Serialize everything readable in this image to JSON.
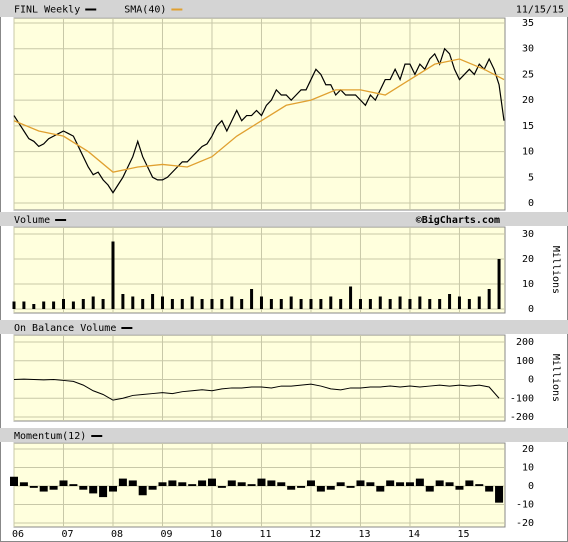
{
  "chart_data": [
    {
      "type": "line",
      "date": "11/15/15",
      "x": [
        2006.0,
        2006.1,
        2006.2,
        2006.3,
        2006.4,
        2006.5,
        2006.6,
        2006.7,
        2006.8,
        2006.9,
        2007.0,
        2007.1,
        2007.2,
        2007.3,
        2007.4,
        2007.5,
        2007.6,
        2007.7,
        2007.8,
        2007.9,
        2008.0,
        2008.1,
        2008.2,
        2008.3,
        2008.4,
        2008.5,
        2008.6,
        2008.7,
        2008.8,
        2008.9,
        2009.0,
        2009.1,
        2009.2,
        2009.3,
        2009.4,
        2009.5,
        2009.6,
        2009.7,
        2009.8,
        2009.9,
        2010.0,
        2010.1,
        2010.2,
        2010.3,
        2010.4,
        2010.5,
        2010.6,
        2010.7,
        2010.8,
        2010.9,
        2011.0,
        2011.1,
        2011.2,
        2011.3,
        2011.4,
        2011.5,
        2011.6,
        2011.7,
        2011.8,
        2011.9,
        2012.0,
        2012.1,
        2012.2,
        2012.3,
        2012.4,
        2012.5,
        2012.6,
        2012.7,
        2012.8,
        2012.9,
        2013.0,
        2013.1,
        2013.2,
        2013.3,
        2013.4,
        2013.5,
        2013.6,
        2013.7,
        2013.8,
        2013.9,
        2014.0,
        2014.1,
        2014.2,
        2014.3,
        2014.4,
        2014.5,
        2014.6,
        2014.7,
        2014.8,
        2014.9,
        2015.0,
        2015.1,
        2015.2,
        2015.3,
        2015.4,
        2015.5,
        2015.6,
        2015.7,
        2015.8,
        2015.9
      ],
      "series": [
        {
          "name": "FINL Weekly",
          "color": "#000000",
          "values": [
            17,
            15.5,
            14,
            12.5,
            12,
            11,
            11.5,
            12.5,
            13,
            13.5,
            14,
            13.5,
            13,
            11,
            9,
            7,
            5.5,
            6,
            4.5,
            3.5,
            2,
            3.5,
            5,
            7,
            9,
            12,
            9,
            7,
            5,
            4.5,
            4.5,
            5,
            6,
            7,
            8,
            8,
            9,
            10,
            11,
            11.5,
            13,
            15,
            16,
            14,
            16,
            18,
            16,
            17,
            17,
            18,
            17,
            19,
            20,
            22,
            21,
            21,
            20,
            21,
            22,
            22,
            24,
            26,
            25,
            23,
            23,
            21,
            22,
            21,
            21,
            21,
            20,
            19,
            21,
            20,
            22,
            24,
            24,
            26,
            24,
            27,
            27,
            25,
            27,
            26,
            28,
            29,
            27,
            30,
            29,
            26,
            24,
            25,
            26,
            25,
            27,
            26,
            28,
            26,
            23,
            16
          ]
        },
        {
          "name": "SMA(40)",
          "color": "#e0a030",
          "x": [
            2006.0,
            2006.5,
            2007.0,
            2007.5,
            2008.0,
            2008.5,
            2009.0,
            2009.5,
            2010.0,
            2010.5,
            2011.0,
            2011.5,
            2012.0,
            2012.5,
            2013.0,
            2013.5,
            2014.0,
            2014.5,
            2015.0,
            2015.5,
            2015.9
          ],
          "values": [
            16,
            14,
            13,
            10,
            6,
            7,
            7.5,
            7,
            9,
            13,
            16,
            19,
            20,
            22,
            22,
            21,
            24,
            27,
            28,
            26,
            24
          ]
        }
      ],
      "ylim": [
        0,
        35
      ],
      "yticks": [
        0,
        5,
        10,
        15,
        20,
        25,
        30,
        35
      ]
    },
    {
      "type": "bar",
      "title": "Volume",
      "source": "©BigCharts.com",
      "ylabel": "Millions",
      "color": "#000000",
      "x": [
        2006.0,
        2006.2,
        2006.4,
        2006.6,
        2006.8,
        2007.0,
        2007.2,
        2007.4,
        2007.6,
        2007.8,
        2008.0,
        2008.2,
        2008.4,
        2008.6,
        2008.8,
        2009.0,
        2009.2,
        2009.4,
        2009.6,
        2009.8,
        2010.0,
        2010.2,
        2010.4,
        2010.6,
        2010.8,
        2011.0,
        2011.2,
        2011.4,
        2011.6,
        2011.8,
        2012.0,
        2012.2,
        2012.4,
        2012.6,
        2012.8,
        2013.0,
        2013.2,
        2013.4,
        2013.6,
        2013.8,
        2014.0,
        2014.2,
        2014.4,
        2014.6,
        2014.8,
        2015.0,
        2015.2,
        2015.4,
        2015.6,
        2015.8
      ],
      "values": [
        3,
        3,
        2,
        3,
        3,
        4,
        3,
        4,
        5,
        4,
        27,
        6,
        5,
        4,
        6,
        5,
        4,
        4,
        5,
        4,
        4,
        4,
        5,
        4,
        8,
        5,
        4,
        4,
        5,
        4,
        4,
        4,
        5,
        4,
        9,
        4,
        4,
        5,
        4,
        5,
        4,
        5,
        4,
        4,
        6,
        5,
        4,
        5,
        8,
        20
      ],
      "ylim": [
        0,
        30
      ],
      "yticks": [
        0,
        10,
        20,
        30
      ]
    },
    {
      "type": "line",
      "title": "On Balance Volume",
      "ylabel": "Millions",
      "color": "#000000",
      "x": [
        2006.0,
        2006.2,
        2006.4,
        2006.6,
        2006.8,
        2007.0,
        2007.2,
        2007.4,
        2007.6,
        2007.8,
        2008.0,
        2008.2,
        2008.4,
        2008.6,
        2008.8,
        2009.0,
        2009.2,
        2009.4,
        2009.6,
        2009.8,
        2010.0,
        2010.2,
        2010.4,
        2010.6,
        2010.8,
        2011.0,
        2011.2,
        2011.4,
        2011.6,
        2011.8,
        2012.0,
        2012.2,
        2012.4,
        2012.6,
        2012.8,
        2013.0,
        2013.2,
        2013.4,
        2013.6,
        2013.8,
        2014.0,
        2014.2,
        2014.4,
        2014.6,
        2014.8,
        2015.0,
        2015.2,
        2015.4,
        2015.6,
        2015.8
      ],
      "values": [
        0,
        2,
        0,
        -2,
        0,
        -5,
        -10,
        -30,
        -60,
        -80,
        -110,
        -100,
        -85,
        -80,
        -75,
        -70,
        -75,
        -65,
        -60,
        -55,
        -60,
        -50,
        -45,
        -45,
        -40,
        -40,
        -45,
        -35,
        -35,
        -30,
        -25,
        -35,
        -50,
        -55,
        -45,
        -45,
        -40,
        -40,
        -35,
        -40,
        -35,
        -40,
        -35,
        -30,
        -35,
        -30,
        -35,
        -30,
        -40,
        -100
      ],
      "ylim": [
        -200,
        200
      ],
      "yticks": [
        -200,
        -100,
        0,
        100,
        200
      ]
    },
    {
      "type": "bar",
      "title": "Momentum(12)",
      "color": "#000000",
      "x": [
        2006.0,
        2006.2,
        2006.4,
        2006.6,
        2006.8,
        2007.0,
        2007.2,
        2007.4,
        2007.6,
        2007.8,
        2008.0,
        2008.2,
        2008.4,
        2008.6,
        2008.8,
        2009.0,
        2009.2,
        2009.4,
        2009.6,
        2009.8,
        2010.0,
        2010.2,
        2010.4,
        2010.6,
        2010.8,
        2011.0,
        2011.2,
        2011.4,
        2011.6,
        2011.8,
        2012.0,
        2012.2,
        2012.4,
        2012.6,
        2012.8,
        2013.0,
        2013.2,
        2013.4,
        2013.6,
        2013.8,
        2014.0,
        2014.2,
        2014.4,
        2014.6,
        2014.8,
        2015.0,
        2015.2,
        2015.4,
        2015.6,
        2015.8
      ],
      "values": [
        5,
        2,
        -1,
        -3,
        -2,
        3,
        1,
        -2,
        -4,
        -6,
        -3,
        4,
        3,
        -5,
        -2,
        2,
        3,
        2,
        1,
        3,
        4,
        -1,
        3,
        2,
        1,
        4,
        3,
        2,
        -2,
        -1,
        3,
        -3,
        -2,
        2,
        -1,
        3,
        2,
        -3,
        3,
        2,
        2,
        4,
        -3,
        3,
        2,
        -2,
        3,
        1,
        -3,
        -9
      ],
      "ylim": [
        -20,
        20
      ],
      "yticks": [
        -20,
        -10,
        0,
        10,
        20
      ],
      "xlim": [
        2006,
        2015.92
      ],
      "xticks": [
        {
          "value": 2006,
          "label": "06"
        },
        {
          "value": 2007,
          "label": "07"
        },
        {
          "value": 2008,
          "label": "08"
        },
        {
          "value": 2009,
          "label": "09"
        },
        {
          "value": 2010,
          "label": "10"
        },
        {
          "value": 2011,
          "label": "11"
        },
        {
          "value": 2012,
          "label": "12"
        },
        {
          "value": 2013,
          "label": "13"
        },
        {
          "value": 2014,
          "label": "14"
        },
        {
          "value": 2015,
          "label": "15"
        }
      ]
    }
  ]
}
